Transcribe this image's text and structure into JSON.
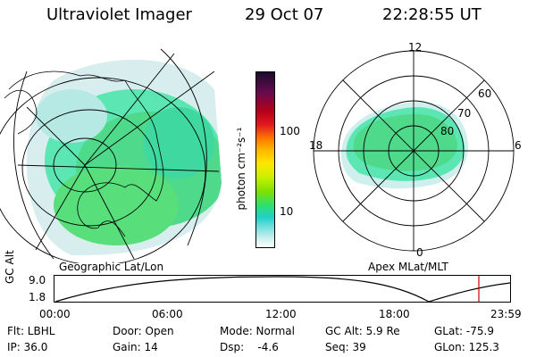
{
  "header": {
    "instrument": "Ultraviolet Imager",
    "date": "29 Oct 07",
    "time": "22:28:55 UT"
  },
  "colorbar": {
    "unit_label": "photon cm⁻²s⁻¹",
    "ticks": [
      "100",
      "10"
    ],
    "colors": [
      "#1a0d2e",
      "#6a0a4e",
      "#b4001a",
      "#e0191f",
      "#ff7a00",
      "#ffb400",
      "#ffe600",
      "#c8f000",
      "#7fe000",
      "#2ee070",
      "#20d0c8",
      "#7ce0e0",
      "#c0ecec",
      "#ffffff"
    ]
  },
  "left_map": {
    "label": "Geographic Lat/Lon"
  },
  "right_map": {
    "label": "Apex MLat/MLT",
    "mlt_labels": {
      "top": "12",
      "left": "18",
      "right": "6",
      "bottom": "0"
    },
    "lat_labels": [
      "60",
      "70",
      "80"
    ]
  },
  "orbit": {
    "ylabel": "GC Alt",
    "yticks": [
      "9.0",
      "1.8"
    ],
    "xticks": [
      "00:00",
      "06:00",
      "12:00",
      "18:00",
      "23:59"
    ],
    "marker_color": "#d00000"
  },
  "footer": {
    "row1": {
      "flt": "Flt: LBHL",
      "door": "Door: Open",
      "mode": "Mode: Normal",
      "gcalt": "GC Alt: 5.9 Re",
      "glat": "GLat: -75.9"
    },
    "row2": {
      "ip": "IP: 36.0",
      "gain": "Gain: 14",
      "dsp": "Dsp:    -4.6",
      "seq": "Seq: 39",
      "glon": "GLon: 125.3"
    }
  }
}
